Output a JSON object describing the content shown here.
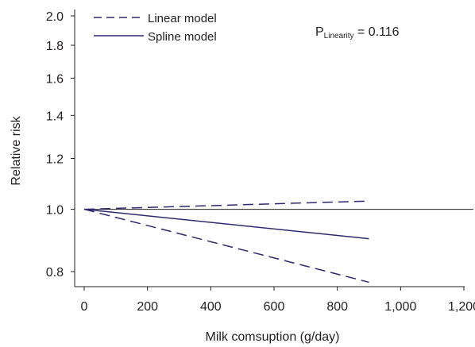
{
  "chart_data": {
    "type": "line",
    "xlabel": "Milk comsuption (g/day)",
    "ylabel": "Relative risk",
    "xlim": [
      -20,
      1230
    ],
    "ylim": [
      0.76,
      2.05
    ],
    "y_scale": "log",
    "x_ticks": [
      0,
      200,
      400,
      600,
      800,
      1000,
      1200
    ],
    "x_tick_labels": [
      "0",
      "200",
      "400",
      "600",
      "800",
      "1,000",
      "1,200"
    ],
    "y_ticks": [
      0.8,
      1.0,
      1.2,
      1.4,
      1.6,
      1.8,
      2.0
    ],
    "y_tick_labels": [
      "0.8",
      "1.0",
      "1.2",
      "1.4",
      "1.6",
      "1.8",
      "2.0"
    ],
    "reference_line": {
      "y": 1.0,
      "x": [
        0,
        1230
      ]
    },
    "series": [
      {
        "name": "Linear model",
        "style": "dashed",
        "x": [
          0,
          900
        ],
        "y": [
          1.0,
          1.03
        ]
      },
      {
        "name": "Linear model",
        "style": "dashed",
        "x": [
          0,
          900
        ],
        "y": [
          1.0,
          0.77
        ]
      },
      {
        "name": "Spline model",
        "style": "solid",
        "x": [
          0,
          900
        ],
        "y": [
          1.0,
          0.9
        ]
      }
    ],
    "annotation": {
      "main": "P",
      "subscript": "Linearity",
      "value": " = 0.116"
    },
    "legend_position": "top-left",
    "grid": false,
    "colors": {
      "series": "#2e2a6e",
      "axis": "#231f20"
    }
  }
}
